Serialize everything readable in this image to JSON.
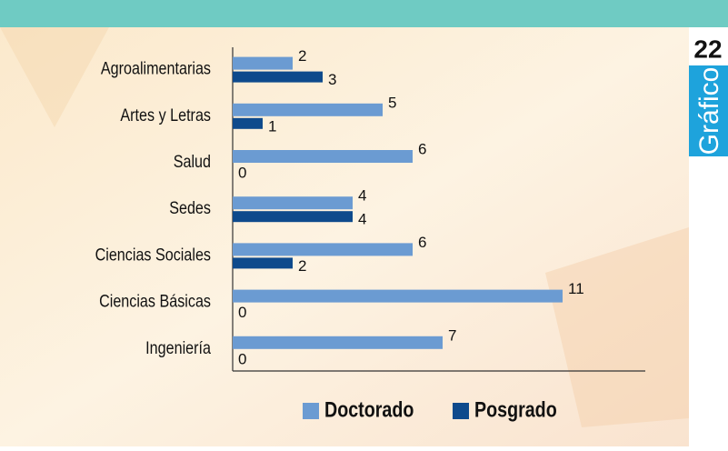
{
  "chart_data": {
    "type": "hbar",
    "categories": [
      "Agroalimentarias",
      "Artes y Letras",
      "Salud",
      "Sedes",
      "Ciencias Sociales",
      "Ciencias Básicas",
      "Ingeniería"
    ],
    "series": [
      {
        "name": "Doctorado",
        "color": "#6b9bd2",
        "values": [
          2,
          5,
          6,
          4,
          6,
          11,
          7
        ]
      },
      {
        "name": "Posgrado",
        "color": "#0e4a8c",
        "values": [
          3,
          1,
          0,
          4,
          2,
          0,
          0
        ]
      }
    ],
    "xlim": [
      0,
      14
    ],
    "legend": "bottom"
  },
  "badge": {
    "number": "22",
    "label": "Gráfico"
  }
}
